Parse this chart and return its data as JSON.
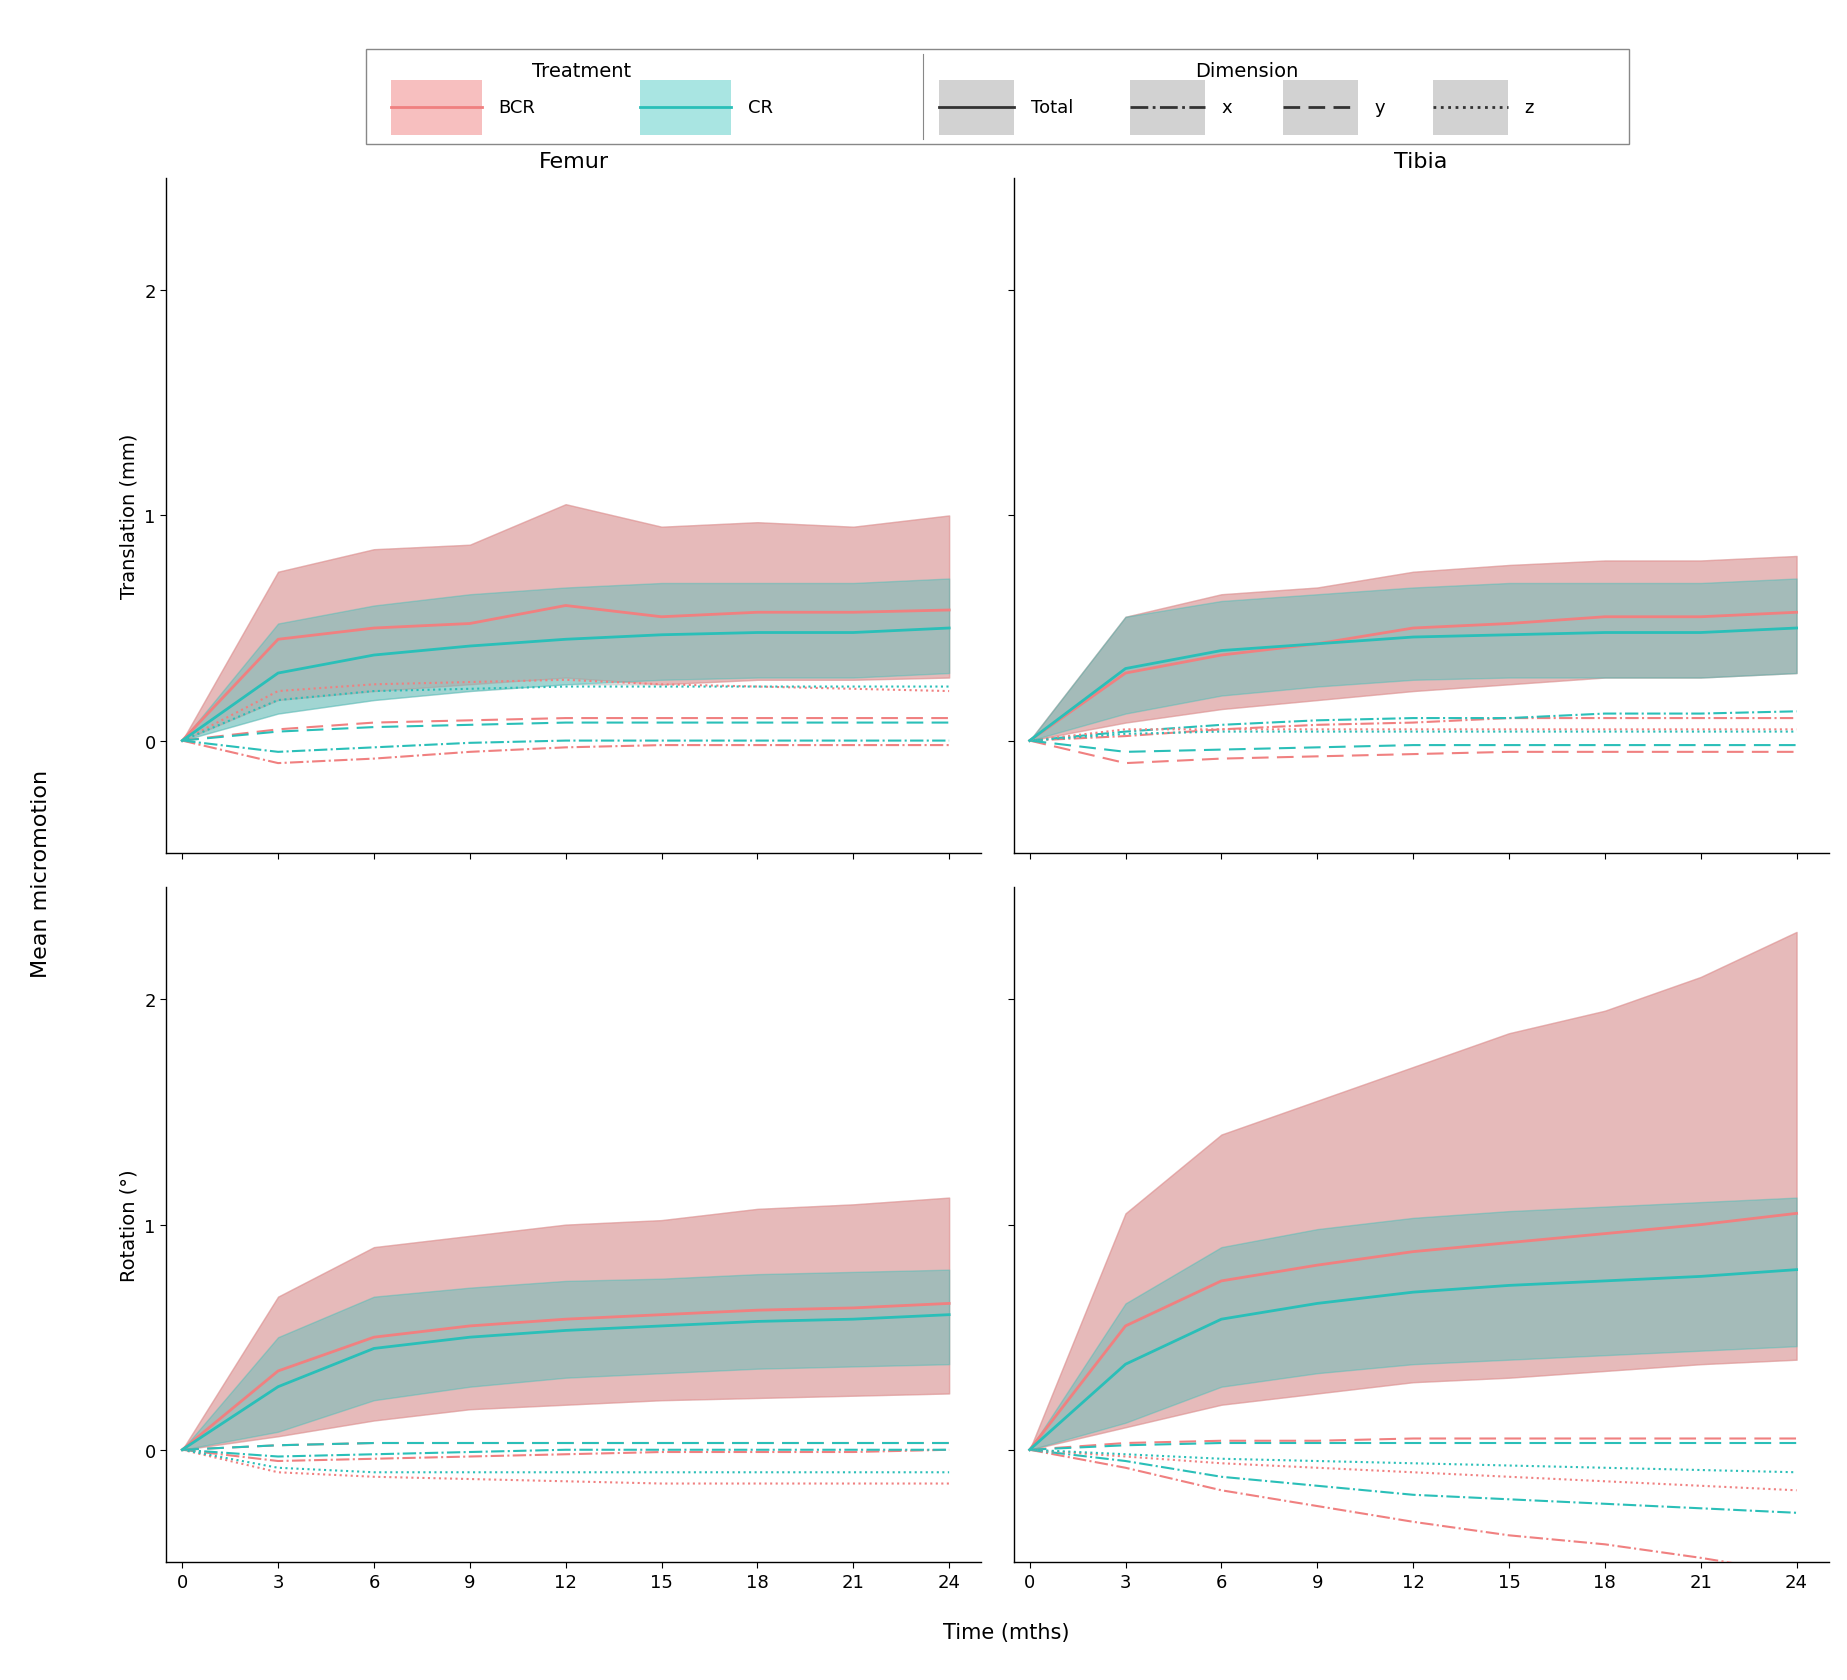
{
  "time": [
    0,
    3,
    6,
    9,
    12,
    15,
    18,
    21,
    24
  ],
  "femur_translation": {
    "bcr_total_mean": [
      0.0,
      0.45,
      0.5,
      0.52,
      0.6,
      0.55,
      0.57,
      0.57,
      0.58
    ],
    "bcr_total_sd_upper": [
      0.0,
      0.75,
      0.85,
      0.87,
      1.05,
      0.95,
      0.97,
      0.95,
      1.0
    ],
    "bcr_total_sd_lower": [
      0.0,
      0.18,
      0.22,
      0.25,
      0.28,
      0.25,
      0.27,
      0.27,
      0.28
    ],
    "cr_total_mean": [
      0.0,
      0.3,
      0.38,
      0.42,
      0.45,
      0.47,
      0.48,
      0.48,
      0.5
    ],
    "cr_total_sd_upper": [
      0.0,
      0.52,
      0.6,
      0.65,
      0.68,
      0.7,
      0.7,
      0.7,
      0.72
    ],
    "cr_total_sd_lower": [
      0.0,
      0.12,
      0.18,
      0.22,
      0.25,
      0.27,
      0.28,
      0.28,
      0.3
    ],
    "bcr_x_mean": [
      0.0,
      -0.1,
      -0.08,
      -0.05,
      -0.03,
      -0.02,
      -0.02,
      -0.02,
      -0.02
    ],
    "cr_x_mean": [
      0.0,
      -0.05,
      -0.03,
      -0.01,
      0.0,
      0.0,
      0.0,
      0.0,
      0.0
    ],
    "bcr_y_mean": [
      0.0,
      0.05,
      0.08,
      0.09,
      0.1,
      0.1,
      0.1,
      0.1,
      0.1
    ],
    "cr_y_mean": [
      0.0,
      0.04,
      0.06,
      0.07,
      0.08,
      0.08,
      0.08,
      0.08,
      0.08
    ],
    "bcr_z_mean": [
      0.0,
      0.22,
      0.25,
      0.26,
      0.27,
      0.25,
      0.24,
      0.23,
      0.22
    ],
    "cr_z_mean": [
      0.0,
      0.18,
      0.22,
      0.23,
      0.24,
      0.24,
      0.24,
      0.24,
      0.24
    ]
  },
  "tibia_translation": {
    "bcr_total_mean": [
      0.0,
      0.3,
      0.38,
      0.43,
      0.5,
      0.52,
      0.55,
      0.55,
      0.57
    ],
    "bcr_total_sd_upper": [
      0.0,
      0.55,
      0.65,
      0.68,
      0.75,
      0.78,
      0.8,
      0.8,
      0.82
    ],
    "bcr_total_sd_lower": [
      0.0,
      0.08,
      0.14,
      0.18,
      0.22,
      0.25,
      0.28,
      0.28,
      0.3
    ],
    "cr_total_mean": [
      0.0,
      0.32,
      0.4,
      0.43,
      0.46,
      0.47,
      0.48,
      0.48,
      0.5
    ],
    "cr_total_sd_upper": [
      0.0,
      0.55,
      0.62,
      0.65,
      0.68,
      0.7,
      0.7,
      0.7,
      0.72
    ],
    "cr_total_sd_lower": [
      0.0,
      0.12,
      0.2,
      0.24,
      0.27,
      0.28,
      0.28,
      0.28,
      0.3
    ],
    "bcr_x_mean": [
      0.0,
      0.02,
      0.05,
      0.07,
      0.08,
      0.1,
      0.1,
      0.1,
      0.1
    ],
    "cr_x_mean": [
      0.0,
      0.04,
      0.07,
      0.09,
      0.1,
      0.1,
      0.12,
      0.12,
      0.13
    ],
    "bcr_y_mean": [
      0.0,
      -0.1,
      -0.08,
      -0.07,
      -0.06,
      -0.05,
      -0.05,
      -0.05,
      -0.05
    ],
    "cr_y_mean": [
      0.0,
      -0.05,
      -0.04,
      -0.03,
      -0.02,
      -0.02,
      -0.02,
      -0.02,
      -0.02
    ],
    "bcr_z_mean": [
      0.0,
      0.05,
      0.05,
      0.05,
      0.05,
      0.05,
      0.05,
      0.05,
      0.05
    ],
    "cr_z_mean": [
      0.0,
      0.03,
      0.04,
      0.04,
      0.04,
      0.04,
      0.04,
      0.04,
      0.04
    ]
  },
  "femur_rotation": {
    "bcr_total_mean": [
      0.0,
      0.35,
      0.5,
      0.55,
      0.58,
      0.6,
      0.62,
      0.63,
      0.65
    ],
    "bcr_total_sd_upper": [
      0.0,
      0.68,
      0.9,
      0.95,
      1.0,
      1.02,
      1.07,
      1.09,
      1.12
    ],
    "bcr_total_sd_lower": [
      0.0,
      0.06,
      0.13,
      0.18,
      0.2,
      0.22,
      0.23,
      0.24,
      0.25
    ],
    "cr_total_mean": [
      0.0,
      0.28,
      0.45,
      0.5,
      0.53,
      0.55,
      0.57,
      0.58,
      0.6
    ],
    "cr_total_sd_upper": [
      0.0,
      0.5,
      0.68,
      0.72,
      0.75,
      0.76,
      0.78,
      0.79,
      0.8
    ],
    "cr_total_sd_lower": [
      0.0,
      0.08,
      0.22,
      0.28,
      0.32,
      0.34,
      0.36,
      0.37,
      0.38
    ],
    "bcr_x_mean": [
      0.0,
      -0.05,
      -0.04,
      -0.03,
      -0.02,
      -0.01,
      -0.01,
      -0.01,
      0.0
    ],
    "cr_x_mean": [
      0.0,
      -0.03,
      -0.02,
      -0.01,
      0.0,
      0.0,
      0.0,
      0.0,
      0.0
    ],
    "bcr_y_mean": [
      0.0,
      0.02,
      0.03,
      0.03,
      0.03,
      0.03,
      0.03,
      0.03,
      0.03
    ],
    "cr_y_mean": [
      0.0,
      0.02,
      0.03,
      0.03,
      0.03,
      0.03,
      0.03,
      0.03,
      0.03
    ],
    "bcr_z_mean": [
      0.0,
      -0.1,
      -0.12,
      -0.13,
      -0.14,
      -0.15,
      -0.15,
      -0.15,
      -0.15
    ],
    "cr_z_mean": [
      0.0,
      -0.08,
      -0.1,
      -0.1,
      -0.1,
      -0.1,
      -0.1,
      -0.1,
      -0.1
    ]
  },
  "tibia_rotation": {
    "bcr_total_mean": [
      0.0,
      0.55,
      0.75,
      0.82,
      0.88,
      0.92,
      0.96,
      1.0,
      1.05
    ],
    "bcr_total_sd_upper": [
      0.0,
      1.05,
      1.4,
      1.55,
      1.7,
      1.85,
      1.95,
      2.1,
      2.3
    ],
    "bcr_total_sd_lower": [
      0.0,
      0.1,
      0.2,
      0.25,
      0.3,
      0.32,
      0.35,
      0.38,
      0.4
    ],
    "cr_total_mean": [
      0.0,
      0.38,
      0.58,
      0.65,
      0.7,
      0.73,
      0.75,
      0.77,
      0.8
    ],
    "cr_total_sd_upper": [
      0.0,
      0.65,
      0.9,
      0.98,
      1.03,
      1.06,
      1.08,
      1.1,
      1.12
    ],
    "cr_total_sd_lower": [
      0.0,
      0.12,
      0.28,
      0.34,
      0.38,
      0.4,
      0.42,
      0.44,
      0.46
    ],
    "bcr_x_mean": [
      0.0,
      -0.08,
      -0.18,
      -0.25,
      -0.32,
      -0.38,
      -0.42,
      -0.48,
      -0.55
    ],
    "cr_x_mean": [
      0.0,
      -0.05,
      -0.12,
      -0.16,
      -0.2,
      -0.22,
      -0.24,
      -0.26,
      -0.28
    ],
    "bcr_y_mean": [
      0.0,
      0.03,
      0.04,
      0.04,
      0.05,
      0.05,
      0.05,
      0.05,
      0.05
    ],
    "cr_y_mean": [
      0.0,
      0.02,
      0.03,
      0.03,
      0.03,
      0.03,
      0.03,
      0.03,
      0.03
    ],
    "bcr_z_mean": [
      0.0,
      -0.03,
      -0.06,
      -0.08,
      -0.1,
      -0.12,
      -0.14,
      -0.16,
      -0.18
    ],
    "cr_z_mean": [
      0.0,
      -0.02,
      -0.04,
      -0.05,
      -0.06,
      -0.07,
      -0.08,
      -0.09,
      -0.1
    ]
  },
  "translation_ylim": [
    -0.5,
    2.5
  ],
  "rotation_ylim": [
    -0.5,
    2.5
  ],
  "yticks_translation": [
    0,
    1,
    2
  ],
  "yticks_rotation": [
    0,
    1,
    2
  ],
  "xticks": [
    0,
    3,
    6,
    9,
    12,
    15,
    18,
    21,
    24
  ],
  "xlabel": "Time (mths)",
  "ylabel_top": "Translation (mm)",
  "ylabel_bottom": "Rotation (°)",
  "ylabel_outer": "Mean micromotion",
  "col_titles": [
    "Femur",
    "Tibia"
  ],
  "bcr_color": "#F08080",
  "cr_color": "#2ABFB8",
  "bcr_fill_alpha": 0.4,
  "cr_fill_alpha": 0.35,
  "gray_fill_alpha": 0.45
}
